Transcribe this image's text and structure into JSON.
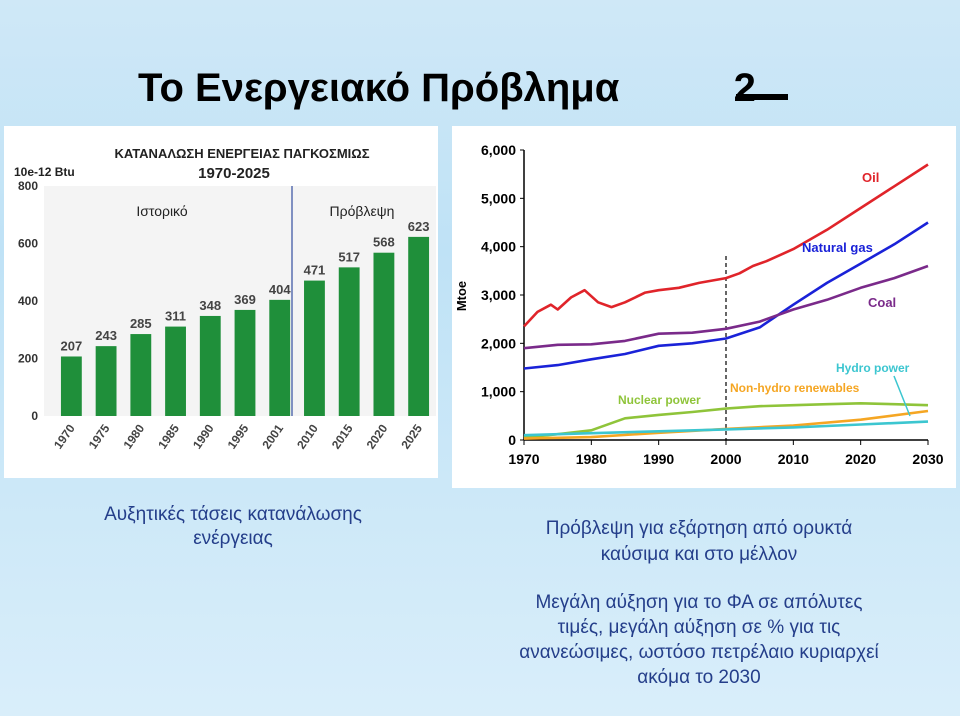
{
  "slide": {
    "title": "Το Ενεργειακό Πρόβλημα – 2",
    "title_main": "Το Ενεργειακό Πρόβλημα",
    "title_num": "2",
    "caption_left": [
      "Αυξητικές τάσεις κατανάλωσης",
      "ενέργειας"
    ],
    "caption_right_1": [
      "Πρόβλεψη για εξάρτηση από ορυκτά",
      "καύσιμα και στο μέλλον"
    ],
    "caption_right_2": [
      "Μεγάλη αύξηση για το ΦΑ σε απόλυτες",
      "τιμές, μεγάλη αύξηση σε % για τις",
      "ανανεώσιμες, ωστόσο πετρέλαιο κυριαρχεί",
      "ακόμα το 2030"
    ],
    "colors": {
      "text": "#243e8a",
      "bars": "#1f8f3a",
      "background": "#c6e5f7"
    }
  },
  "chart_data": [
    {
      "type": "bar",
      "title": "ΚΑΤΑΝΑΛΩΣΗ ΕΝΕΡΓΕΙΑΣ ΠΑΓΚΟΣΜΙΩΣ",
      "subtitle": "1970-2025",
      "unit_label": "10e-12 Btu",
      "categories": [
        "1970",
        "1975",
        "1980",
        "1985",
        "1990",
        "1995",
        "2001",
        "2010",
        "2015",
        "2020",
        "2025"
      ],
      "values": [
        207,
        243,
        285,
        311,
        348,
        369,
        404,
        471,
        517,
        568,
        623
      ],
      "value_labels": [
        "207",
        "243",
        "285",
        "311",
        "348",
        "369",
        "404",
        "471",
        "517",
        "568",
        "623"
      ],
      "ylim": [
        0,
        800
      ],
      "yticks": [
        "0",
        "200",
        "400",
        "600",
        "800"
      ],
      "region_labels": [
        "Ιστορικό",
        "Πρόβλεψη"
      ],
      "bar_color": "#1f8f3a"
    },
    {
      "type": "line",
      "ylabel": "Mtoe",
      "xlim": [
        1970,
        2030
      ],
      "ylim": [
        0,
        6000
      ],
      "xticks": [
        "1970",
        "1980",
        "1990",
        "2000",
        "2010",
        "2020",
        "2030"
      ],
      "yticks": [
        "0",
        "1,000",
        "2,000",
        "3,000",
        "4,000",
        "5,000",
        "6,000"
      ],
      "grid": false,
      "projection_start": 2000,
      "series": [
        {
          "name": "Oil",
          "color": "#e0242a",
          "x": [
            1970,
            1972,
            1974,
            1975,
            1977,
            1979,
            1981,
            1983,
            1985,
            1988,
            1990,
            1993,
            1996,
            1998,
            2000,
            2002,
            2004,
            2006,
            2010,
            2015,
            2020,
            2025,
            2030
          ],
          "y": [
            2350,
            2650,
            2800,
            2700,
            2950,
            3100,
            2850,
            2750,
            2850,
            3050,
            3100,
            3150,
            3250,
            3300,
            3350,
            3450,
            3600,
            3700,
            3950,
            4350,
            4800,
            5250,
            5700
          ]
        },
        {
          "name": "Natural gas",
          "color": "#1a22d8",
          "x": [
            1970,
            1975,
            1980,
            1985,
            1990,
            1995,
            2000,
            2005,
            2010,
            2015,
            2020,
            2025,
            2030
          ],
          "y": [
            1480,
            1550,
            1670,
            1780,
            1950,
            2000,
            2100,
            2330,
            2800,
            3250,
            3650,
            4050,
            4500
          ]
        },
        {
          "name": "Coal",
          "color": "#7a2a8a",
          "x": [
            1970,
            1975,
            1980,
            1985,
            1990,
            1995,
            2000,
            2005,
            2010,
            2015,
            2020,
            2025,
            2030
          ],
          "y": [
            1900,
            1970,
            1980,
            2050,
            2200,
            2220,
            2300,
            2450,
            2700,
            2900,
            3150,
            3350,
            3600
          ]
        },
        {
          "name": "Nuclear power",
          "color": "#8fc43a",
          "x": [
            1970,
            1975,
            1980,
            1985,
            1990,
            1995,
            2000,
            2005,
            2010,
            2015,
            2020,
            2025,
            2030
          ],
          "y": [
            50,
            120,
            200,
            450,
            520,
            580,
            650,
            700,
            720,
            740,
            760,
            740,
            720
          ]
        },
        {
          "name": "Non-hydro renewables",
          "color": "#f5a623",
          "x": [
            1970,
            1980,
            1990,
            2000,
            2010,
            2020,
            2030
          ],
          "y": [
            30,
            60,
            150,
            230,
            300,
            420,
            600
          ]
        },
        {
          "name": "Hydro power",
          "color": "#3cc6d0",
          "x": [
            1970,
            1980,
            1990,
            2000,
            2010,
            2020,
            2030
          ],
          "y": [
            100,
            140,
            180,
            220,
            260,
            320,
            380
          ]
        }
      ]
    }
  ]
}
